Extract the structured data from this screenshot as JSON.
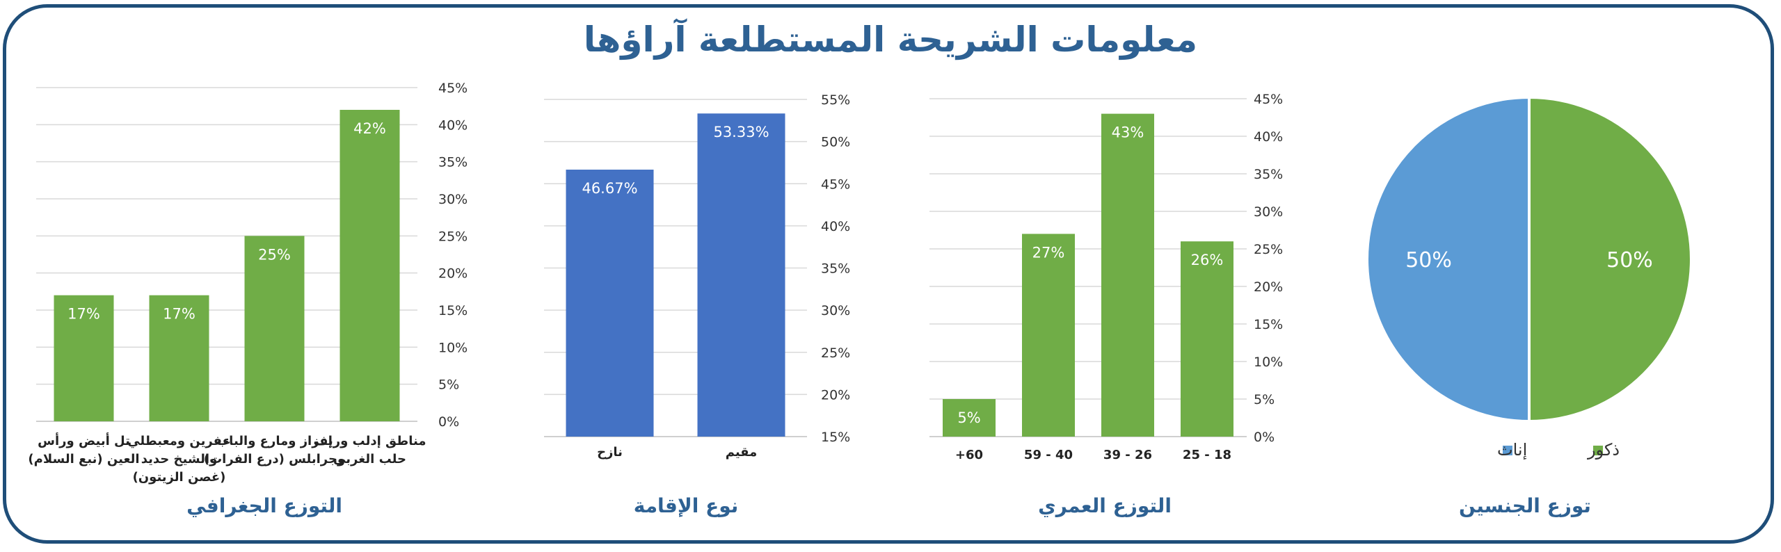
{
  "title": "معلومات الشريحة المستطلعة آراؤها",
  "colors": {
    "frame": "#1F4E79",
    "title": "#2E6193",
    "green": "#70AD47",
    "blue": "#4472C4",
    "light_blue": "#5B9BD5"
  },
  "chart_data": [
    {
      "id": "geo",
      "type": "bar",
      "title": "التوزع الجغرافي",
      "categories": [
        [
          "مناطق إدلب وريف",
          "حلب الغربي"
        ],
        [
          "إعزاز ومارع والباب",
          "وجرابلس (درع الفرات)"
        ],
        [
          "عفرين ومعبطلي",
          "والشيخ حديد",
          "(غصن الزيتون)"
        ],
        [
          "تل أبيض ورأس",
          "العين (نبع السلام)"
        ]
      ],
      "values": [
        42,
        25,
        17,
        17
      ],
      "labels": [
        "42%",
        "25%",
        "17%",
        "17%"
      ],
      "ylim": [
        0,
        45
      ],
      "yticks": [
        "0%",
        "5%",
        "10%",
        "15%",
        "20%",
        "25%",
        "30%",
        "35%",
        "40%",
        "45%"
      ],
      "color": "#70AD47",
      "grid": true
    },
    {
      "id": "residence",
      "type": "bar",
      "title": "نوع الإقامة",
      "categories": [
        [
          "مقيم"
        ],
        [
          "نازح"
        ]
      ],
      "values": [
        53.33,
        46.67
      ],
      "labels": [
        "53.33%",
        "46.67%"
      ],
      "ylim": [
        15,
        55
      ],
      "yticks": [
        "15%",
        "20%",
        "25%",
        "30%",
        "35%",
        "40%",
        "45%",
        "50%",
        "55%"
      ],
      "color": "#4472C4",
      "grid": true
    },
    {
      "id": "age",
      "type": "bar",
      "title": "التوزع العمري",
      "categories": [
        [
          "18 - 25"
        ],
        [
          "26 - 39"
        ],
        [
          "40 - 59"
        ],
        [
          "60+"
        ]
      ],
      "values": [
        26,
        43,
        27,
        5
      ],
      "labels": [
        "26%",
        "43%",
        "27%",
        "5%"
      ],
      "ylim": [
        0,
        45
      ],
      "yticks": [
        "0%",
        "5%",
        "10%",
        "15%",
        "20%",
        "25%",
        "30%",
        "35%",
        "40%",
        "45%"
      ],
      "color": "#70AD47",
      "grid": true
    },
    {
      "id": "gender",
      "type": "pie",
      "title": "توزع الجنسين",
      "slices": [
        {
          "name": "ذكور",
          "value": 50,
          "label": "50%",
          "color": "#70AD47"
        },
        {
          "name": "إناث",
          "value": 50,
          "label": "50%",
          "color": "#5B9BD5"
        }
      ],
      "legend": "bottom"
    }
  ]
}
